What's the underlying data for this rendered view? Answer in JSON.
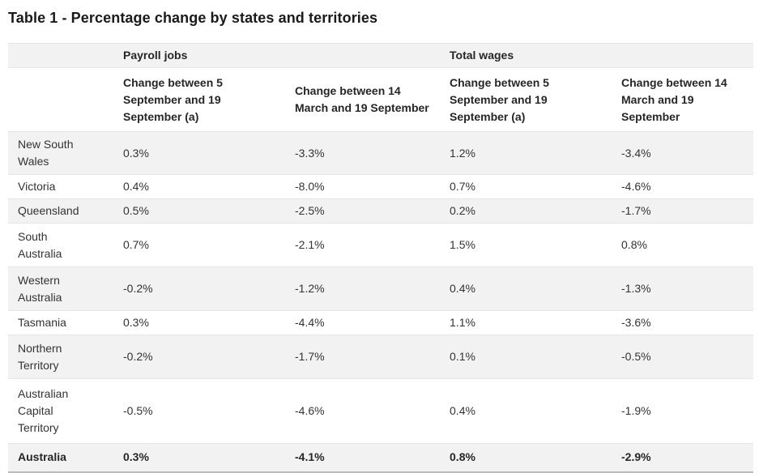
{
  "title": "Table 1 - Percentage change by states and territories",
  "colors": {
    "stripe_bg": "#f2f2f2",
    "row_border": "#e3e5e8",
    "table_bottom_border": "#b9bcc0",
    "text": "#333333",
    "title_text": "#1a1a1a"
  },
  "table": {
    "col_groups": [
      {
        "label": "Payroll jobs"
      },
      {
        "label": "Total wages"
      }
    ],
    "sub_headers": [
      "Change between 5 September and 19 September (a)",
      "Change between 14 March and 19 September",
      "Change between 5 September and 19 September (a)",
      "Change between 14 March and 19 September"
    ],
    "rows": [
      {
        "label": "New South Wales",
        "values": [
          "0.3%",
          "-3.3%",
          "1.2%",
          "-3.4%"
        ]
      },
      {
        "label": "Victoria",
        "values": [
          "0.4%",
          "-8.0%",
          "0.7%",
          "-4.6%"
        ]
      },
      {
        "label": "Queensland",
        "values": [
          "0.5%",
          "-2.5%",
          "0.2%",
          "-1.7%"
        ]
      },
      {
        "label": "South Australia",
        "values": [
          "0.7%",
          "-2.1%",
          "1.5%",
          "0.8%"
        ]
      },
      {
        "label": "Western Australia",
        "values": [
          "-0.2%",
          "-1.2%",
          "0.4%",
          "-1.3%"
        ]
      },
      {
        "label": "Tasmania",
        "values": [
          "0.3%",
          "-4.4%",
          "1.1%",
          "-3.6%"
        ]
      },
      {
        "label": "Northern Territory",
        "values": [
          "-0.2%",
          "-1.7%",
          "0.1%",
          "-0.5%"
        ]
      },
      {
        "label": "Australian Capital Territory",
        "values": [
          "-0.5%",
          "-4.6%",
          "0.4%",
          "-1.9%"
        ]
      },
      {
        "label": "Australia",
        "values": [
          "0.3%",
          "-4.1%",
          "0.8%",
          "-2.9%"
        ],
        "bold": true
      }
    ]
  },
  "chart_data": {
    "type": "table",
    "title": "Table 1 - Percentage change by states and territories",
    "unit": "%",
    "categories": [
      "New South Wales",
      "Victoria",
      "Queensland",
      "South Australia",
      "Western Australia",
      "Tasmania",
      "Northern Territory",
      "Australian Capital Territory",
      "Australia"
    ],
    "series": [
      {
        "name": "Payroll jobs - Change between 5 September and 19 September (a)",
        "values": [
          0.3,
          0.4,
          0.5,
          0.7,
          -0.2,
          0.3,
          -0.2,
          -0.5,
          0.3
        ]
      },
      {
        "name": "Payroll jobs - Change between 14 March and 19 September",
        "values": [
          -3.3,
          -8.0,
          -2.5,
          -2.1,
          -1.2,
          -4.4,
          -1.7,
          -4.6,
          -4.1
        ]
      },
      {
        "name": "Total wages - Change between 5 September and 19 September (a)",
        "values": [
          1.2,
          0.7,
          0.2,
          1.5,
          0.4,
          1.1,
          0.1,
          0.4,
          0.8
        ]
      },
      {
        "name": "Total wages - Change between 14 March and 19 September",
        "values": [
          -3.4,
          -4.6,
          -1.7,
          0.8,
          -1.3,
          -3.6,
          -0.5,
          -1.9,
          -2.9
        ]
      }
    ]
  }
}
